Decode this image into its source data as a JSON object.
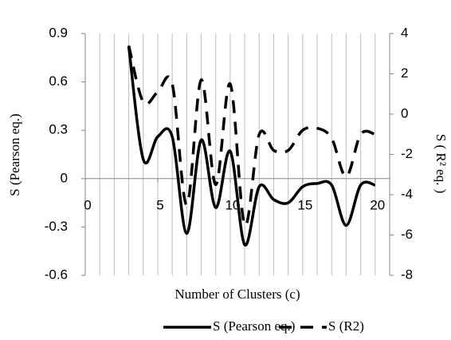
{
  "chart_data": {
    "type": "line",
    "x_label": "Number of Clusters (c)",
    "y_label": "S (Pearson eq.)",
    "y2_label": "S ( R² eq. )",
    "x": [
      3,
      4,
      5,
      6,
      7,
      8,
      9,
      10,
      11,
      12,
      13,
      14,
      15,
      16,
      17,
      18,
      19,
      20
    ],
    "series": [
      {
        "name": "S (Pearson eq.)",
        "color": "#000000",
        "dash": "solid",
        "values": [
          0.82,
          0.12,
          0.26,
          0.26,
          -0.34,
          0.24,
          -0.18,
          0.17,
          -0.41,
          -0.05,
          -0.13,
          -0.15,
          -0.05,
          -0.03,
          -0.04,
          -0.29,
          -0.04,
          -0.04
        ]
      },
      {
        "name": "S (R2)",
        "color": "#000000",
        "dash": "dashed",
        "axis": "y2",
        "values": [
          3.4,
          0.6,
          1.1,
          1.5,
          -4.5,
          1.7,
          -3.5,
          1.5,
          -5.5,
          -1.0,
          -1.8,
          -1.8,
          -0.8,
          -0.7,
          -1.2,
          -3.1,
          -1.0,
          -1.0
        ]
      }
    ],
    "xlim": [
      0,
      21
    ],
    "xticks": [
      0,
      5,
      10,
      15,
      20
    ],
    "ylim": [
      -0.6,
      0.9
    ],
    "yticks": [
      -0.6,
      -0.3,
      0,
      0.3,
      0.6,
      0.9
    ],
    "y2lim": [
      -8,
      4
    ],
    "y2ticks": [
      -8,
      -6,
      -4,
      -2,
      0,
      2,
      4
    ],
    "grid": {
      "x_step": 1
    },
    "legend": "bottom",
    "smooth": true
  }
}
